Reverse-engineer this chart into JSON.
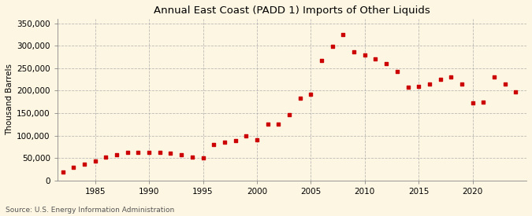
{
  "title": "Annual East Coast (PADD 1) Imports of Other Liquids",
  "ylabel": "Thousand Barrels",
  "source": "Source: U.S. Energy Information Administration",
  "background_color": "#fdf6e3",
  "marker_color": "#cc0000",
  "grid_color": "#aaaaaa",
  "xlim": [
    1981.5,
    2025
  ],
  "ylim": [
    0,
    360000
  ],
  "yticks": [
    0,
    50000,
    100000,
    150000,
    200000,
    250000,
    300000,
    350000
  ],
  "xticks": [
    1985,
    1990,
    1995,
    2000,
    2005,
    2010,
    2015,
    2020
  ],
  "years": [
    1982,
    1983,
    1984,
    1985,
    1986,
    1987,
    1988,
    1989,
    1990,
    1991,
    1992,
    1993,
    1994,
    1995,
    1996,
    1997,
    1998,
    1999,
    2000,
    2001,
    2002,
    2003,
    2004,
    2005,
    2006,
    2007,
    2008,
    2009,
    2010,
    2011,
    2012,
    2013,
    2014,
    2015,
    2016,
    2017,
    2018,
    2019,
    2020,
    2021,
    2022,
    2023,
    2024
  ],
  "values": [
    18000,
    30000,
    36000,
    43000,
    52000,
    58000,
    62000,
    62000,
    62000,
    63000,
    60000,
    58000,
    52000,
    50000,
    80000,
    85000,
    88000,
    100000,
    90000,
    125000,
    125000,
    147000,
    183000,
    192000,
    267000,
    298000,
    325000,
    286000,
    280000,
    270000,
    260000,
    242000,
    207000,
    210000,
    215000,
    225000,
    230000,
    215000,
    172000,
    175000,
    230000,
    215000,
    197000
  ]
}
